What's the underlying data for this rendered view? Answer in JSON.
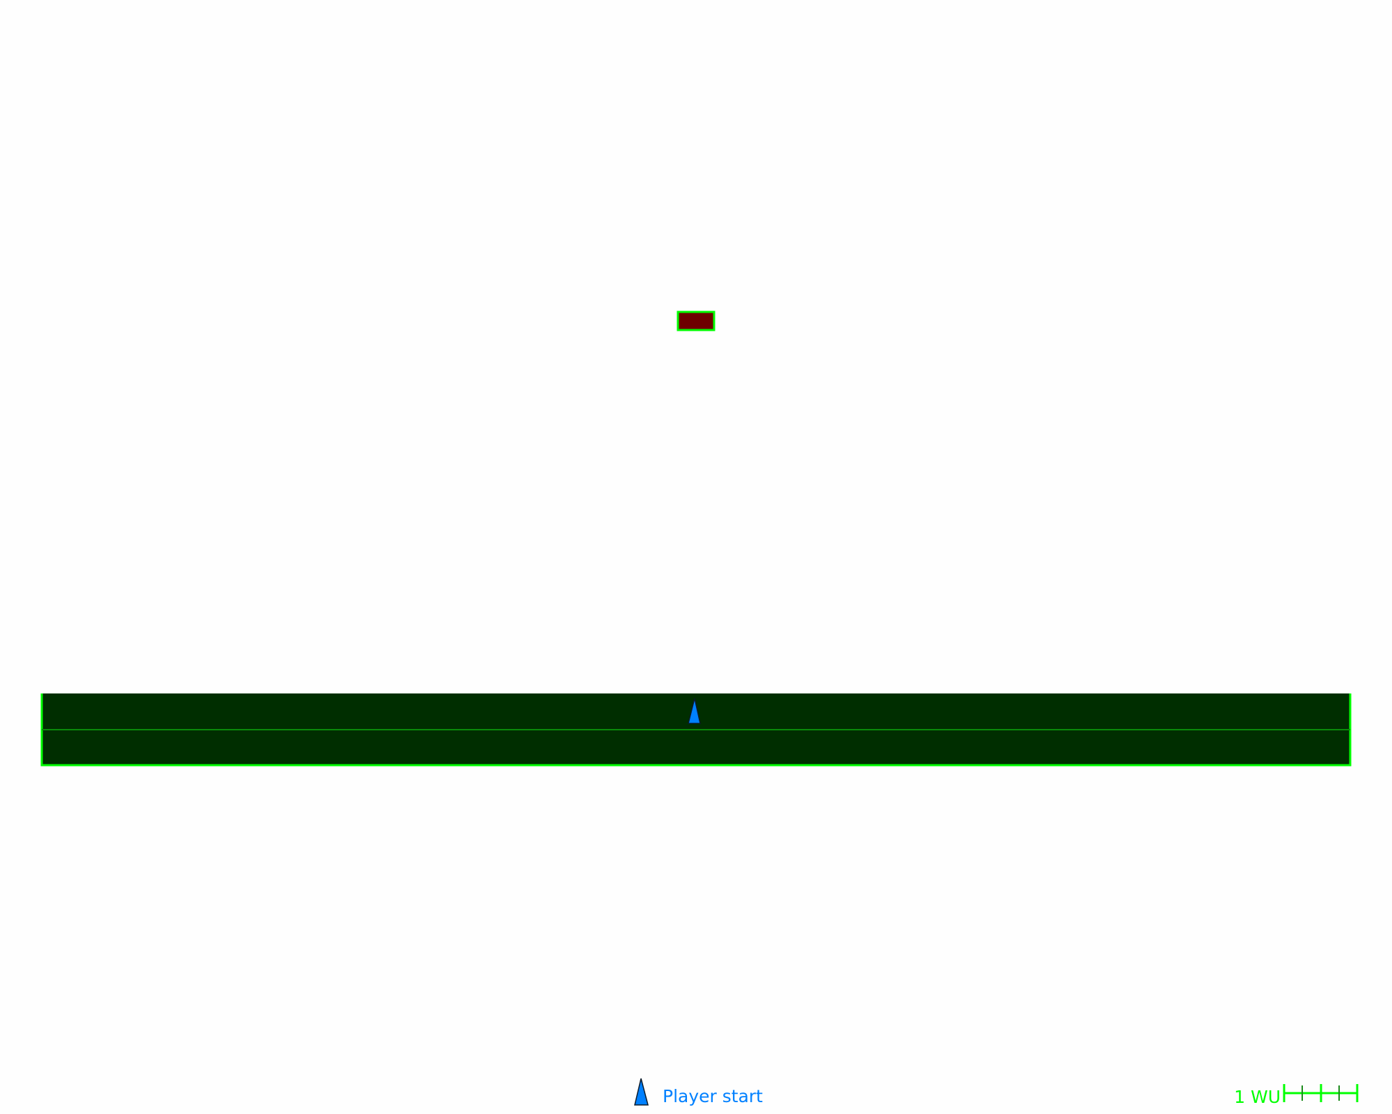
{
  "map": {
    "background": "#fefefe",
    "ground": {
      "fill": "#002e00",
      "stroke": "#00ff00",
      "midline": "#0a8a0a"
    },
    "block": {
      "fill": "#6e0000",
      "stroke": "#00ff00"
    },
    "player_marker": {
      "icon": "player-start-triangle",
      "fill": "#0080ff",
      "stroke": "#0a1a2a"
    }
  },
  "legend": {
    "player_start_label": "Player start",
    "label_color": "#0080ff"
  },
  "scale_bar": {
    "label": "1 WU",
    "color": "#00ff00",
    "subdivisions": 4
  }
}
